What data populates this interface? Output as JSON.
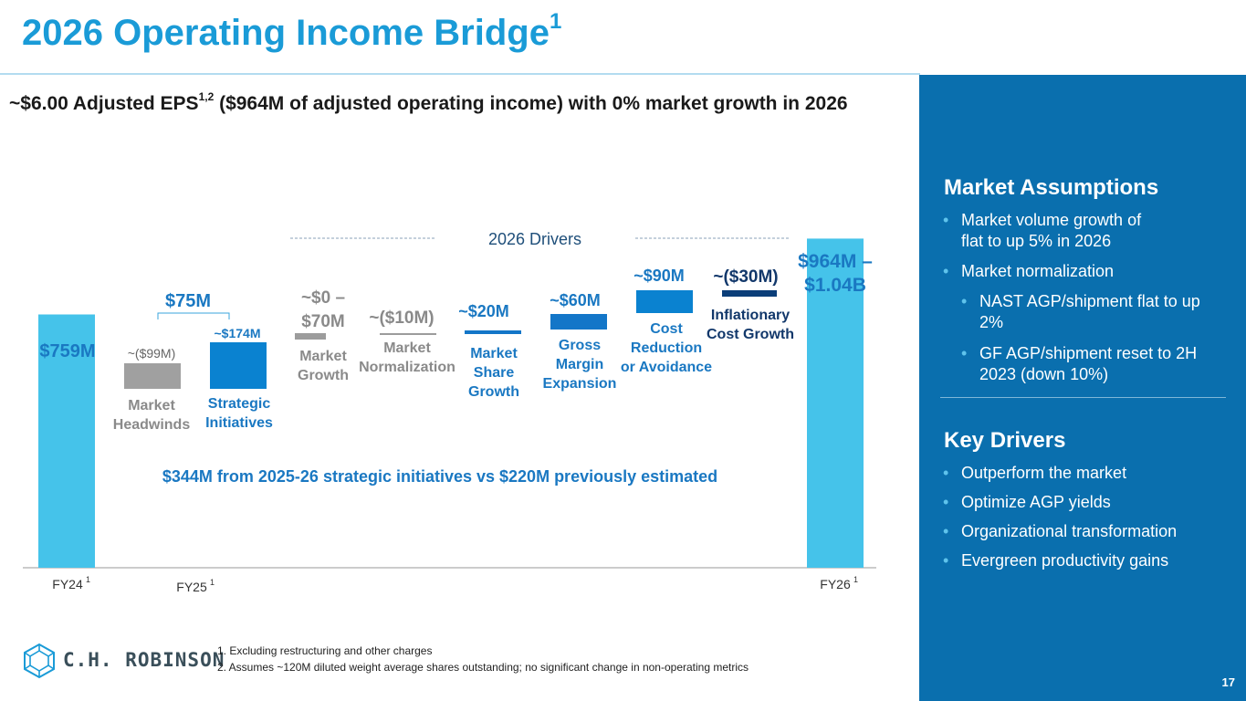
{
  "header": {
    "title": "2026 Operating Income Bridge",
    "title_sup": "1",
    "subtitle_pre": "~$6.00 Adjusted EPS",
    "subtitle_sup": "1,2",
    "subtitle_post": " ($964M of adjusted operating income) with 0% market growth in 2026"
  },
  "panel": {
    "market_title": "Market Assumptions",
    "market_bullets": [
      "Market volume growth of",
      "flat to up 5% in 2026",
      "Market normalization"
    ],
    "market_sub_bullets": [
      "NAST AGP/shipment flat to up",
      "2%",
      "GF AGP/shipment reset to 2H",
      "2023 (down 10%)"
    ],
    "drivers_title": "Key Drivers",
    "drivers_bullets": [
      "Outperform the market",
      "Optimize AGP yields",
      "Organizational transformation",
      "Evergreen productivity gains"
    ],
    "page_number": "17"
  },
  "chart_data": {
    "type": "bar",
    "subtype": "waterfall",
    "title": "2026 Drivers",
    "axis_labels": [
      {
        "label": "FY24",
        "sup": "1"
      },
      {
        "label": "FY25",
        "sup": "1"
      },
      {
        "label": "FY26",
        "sup": "1"
      }
    ],
    "bars": [
      {
        "name": "FY24",
        "value_label": "$759M",
        "start": 0,
        "end": 759,
        "category": [
          "",
          ""
        ]
      },
      {
        "name": "Market Headwinds",
        "value_label": "~($99M)",
        "start": 660,
        "end": 759,
        "category": [
          "Market",
          "Headwinds"
        ]
      },
      {
        "name": "Strategic Initiatives",
        "value_label": "~$174M",
        "start": 660,
        "end": 834,
        "category": [
          "Strategic",
          "Initiatives"
        ]
      },
      {
        "name": "Market Growth",
        "value_label": "~$0 –",
        "value_label2": "$70M",
        "start": 834,
        "end": 869,
        "category": [
          "Market",
          "Growth"
        ]
      },
      {
        "name": "Market Normalization",
        "value_label": "~($10M)",
        "start": 859,
        "end": 869,
        "category": [
          "Market",
          "Normalization"
        ]
      },
      {
        "name": "Market Share Growth",
        "value_label": "~$20M",
        "start": 859,
        "end": 879,
        "category": [
          "Market",
          "Share",
          "Growth"
        ]
      },
      {
        "name": "Gross Margin Expansion",
        "value_label": "~$60M",
        "start": 879,
        "end": 939,
        "category": [
          "Gross",
          "Margin",
          "Expansion"
        ]
      },
      {
        "name": "Cost Reduction or Avoidance",
        "value_label": "~$90M",
        "start": 939,
        "end": 1029,
        "category": [
          "Cost",
          "Reduction",
          "or Avoidance"
        ]
      },
      {
        "name": "Inflationary Cost Growth",
        "value_label": "~($30M)",
        "start": 999,
        "end": 1029,
        "category": [
          "Inflationary",
          "Cost Growth"
        ]
      },
      {
        "name": "FY26",
        "value_label": "$964M –",
        "value_label2": "$1.04B",
        "start": 0,
        "end": 1000,
        "category": [
          "",
          ""
        ]
      }
    ],
    "fy25_bracket_label": "$75M",
    "callout": "$344M from 2025-26 strategic initiatives vs $220M previously estimated",
    "colors": {
      "total": "#45c3ea",
      "headwind": "#a0a0a0",
      "initiative": "#0a82d0",
      "gray_small": "#9c9c9c",
      "blue_small": "#1376c8",
      "inflation": "#0b3e79",
      "label_blue": "#1a78c2",
      "label_gray": "#8a8a8a",
      "label_navy": "#12386b"
    }
  },
  "footnotes": [
    "1.  Excluding restructuring and other charges",
    "2.  Assumes ~120M diluted weight average shares outstanding; no significant change in non-operating metrics"
  ],
  "logo": {
    "text": "C.H. ROBINSON"
  }
}
